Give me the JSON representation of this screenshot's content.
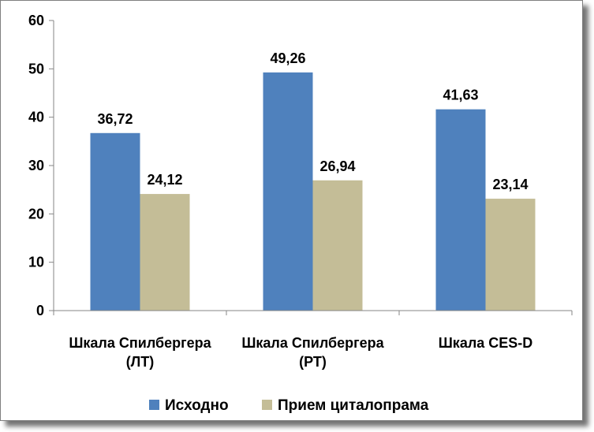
{
  "chart_data": {
    "type": "bar",
    "categories": [
      [
        "Шкала Спилбергера",
        "(ЛТ)"
      ],
      [
        "Шкала Спилбергера",
        "(РТ)"
      ],
      [
        "Шкала CES-D"
      ]
    ],
    "series": [
      {
        "name": "Исходно",
        "values": [
          36.72,
          49.26,
          41.63
        ],
        "labels": [
          "36,72",
          "49,26",
          "41,63"
        ],
        "color": "#4f81bd"
      },
      {
        "name": "Прием циталопрама",
        "values": [
          24.12,
          26.94,
          23.14
        ],
        "labels": [
          "24,12",
          "26,94",
          "23,14"
        ],
        "color": "#c4bd97"
      }
    ],
    "ylim": [
      0,
      60
    ],
    "yticks": [
      "0",
      "10",
      "20",
      "30",
      "40",
      "50",
      "60"
    ],
    "grid": false,
    "legend_position": "bottom"
  }
}
